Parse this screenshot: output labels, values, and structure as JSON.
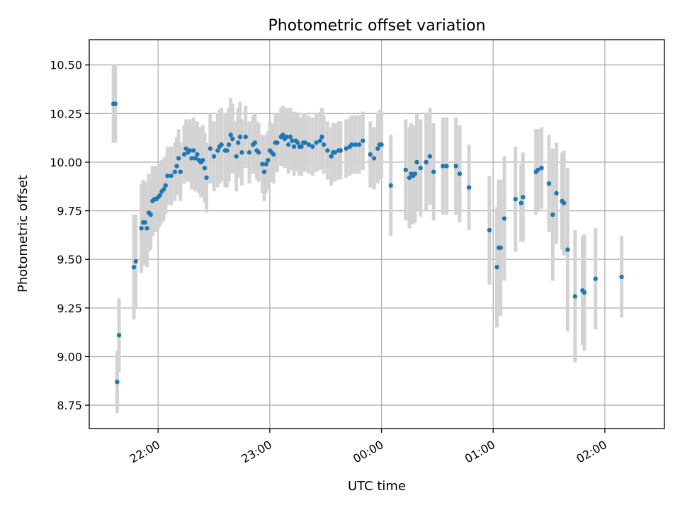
{
  "chart_data": {
    "type": "scatter",
    "title": "Photometric offset variation",
    "xlabel": "UTC time",
    "ylabel": "Photometric offset",
    "x_unit": "UTC time (hours, after 21:00 rolls over past midnight)",
    "xlim": [
      "21:23",
      "02:32"
    ],
    "ylim": [
      8.63,
      10.63
    ],
    "x_ticks": [
      "22:00",
      "23:00",
      "00:00",
      "01:00",
      "02:00"
    ],
    "y_ticks": [
      "8.75",
      "9.00",
      "9.25",
      "9.50",
      "9.75",
      "10.00",
      "10.25",
      "10.50"
    ],
    "grid": true,
    "colors": {
      "points": "#1f77b4",
      "errorbars": "#d3d3d3"
    },
    "points": [
      [
        "21:36",
        10.3,
        0.2
      ],
      [
        "21:37",
        10.3,
        0.2
      ],
      [
        "21:38",
        8.87,
        0.16
      ],
      [
        "21:39",
        9.11,
        0.19
      ],
      [
        "21:47",
        9.46,
        0.27
      ],
      [
        "21:48",
        9.49,
        0.24
      ],
      [
        "21:51",
        9.66,
        0.23
      ],
      [
        "21:52",
        9.69,
        0.22
      ],
      [
        "21:53",
        9.69,
        0.21
      ],
      [
        "21:54",
        9.66,
        0.2
      ],
      [
        "21:55",
        9.74,
        0.2
      ],
      [
        "21:56",
        9.73,
        0.18
      ],
      [
        "21:57",
        9.8,
        0.18
      ],
      [
        "21:58",
        9.81,
        0.17
      ],
      [
        "21:59",
        9.81,
        0.17
      ],
      [
        "22:00",
        9.82,
        0.16
      ],
      [
        "22:01",
        9.83,
        0.16
      ],
      [
        "22:02",
        9.85,
        0.16
      ],
      [
        "22:03",
        9.86,
        0.16
      ],
      [
        "22:04",
        9.88,
        0.15
      ],
      [
        "22:05",
        9.93,
        0.15
      ],
      [
        "22:07",
        9.93,
        0.15
      ],
      [
        "22:09",
        9.95,
        0.15
      ],
      [
        "22:10",
        9.98,
        0.15
      ],
      [
        "22:11",
        10.02,
        0.15
      ],
      [
        "22:12",
        9.95,
        0.15
      ],
      [
        "22:14",
        10.04,
        0.15
      ],
      [
        "22:15",
        10.07,
        0.15
      ],
      [
        "22:16",
        10.05,
        0.15
      ],
      [
        "22:17",
        10.06,
        0.16
      ],
      [
        "22:18",
        10.02,
        0.16
      ],
      [
        "22:19",
        10.06,
        0.17
      ],
      [
        "22:20",
        10.02,
        0.17
      ],
      [
        "22:21",
        10.04,
        0.17
      ],
      [
        "22:22",
        10.01,
        0.17
      ],
      [
        "22:23",
        10.0,
        0.18
      ],
      [
        "22:24",
        10.01,
        0.18
      ],
      [
        "22:25",
        9.97,
        0.18
      ],
      [
        "22:26",
        9.92,
        0.18
      ],
      [
        "22:28",
        10.07,
        0.18
      ],
      [
        "22:30",
        10.03,
        0.18
      ],
      [
        "22:32",
        10.06,
        0.19
      ],
      [
        "22:33",
        10.08,
        0.19
      ],
      [
        "22:34",
        10.09,
        0.19
      ],
      [
        "22:36",
        10.06,
        0.19
      ],
      [
        "22:37",
        10.06,
        0.19
      ],
      [
        "22:38",
        10.09,
        0.19
      ],
      [
        "22:39",
        10.14,
        0.19
      ],
      [
        "22:40",
        10.12,
        0.18
      ],
      [
        "22:42",
        10.03,
        0.18
      ],
      [
        "22:43",
        10.1,
        0.18
      ],
      [
        "22:44",
        10.13,
        0.18
      ],
      [
        "22:45",
        10.05,
        0.17
      ],
      [
        "22:47",
        10.13,
        0.16
      ],
      [
        "22:49",
        10.05,
        0.16
      ],
      [
        "22:51",
        10.09,
        0.15
      ],
      [
        "22:52",
        10.1,
        0.15
      ],
      [
        "22:53",
        10.06,
        0.15
      ],
      [
        "22:54",
        10.05,
        0.15
      ],
      [
        "22:56",
        9.99,
        0.15
      ],
      [
        "22:57",
        9.95,
        0.15
      ],
      [
        "22:58",
        9.99,
        0.15
      ],
      [
        "22:59",
        10.01,
        0.15
      ],
      [
        "23:00",
        10.06,
        0.15
      ],
      [
        "23:01",
        10.05,
        0.15
      ],
      [
        "23:02",
        10.04,
        0.15
      ],
      [
        "23:03",
        10.1,
        0.15
      ],
      [
        "23:04",
        10.1,
        0.15
      ],
      [
        "23:06",
        10.13,
        0.15
      ],
      [
        "23:07",
        10.14,
        0.15
      ],
      [
        "23:08",
        10.12,
        0.15
      ],
      [
        "23:09",
        10.13,
        0.15
      ],
      [
        "23:10",
        10.09,
        0.15
      ],
      [
        "23:11",
        10.13,
        0.15
      ],
      [
        "23:12",
        10.11,
        0.15
      ],
      [
        "23:13",
        10.08,
        0.15
      ],
      [
        "23:14",
        10.11,
        0.15
      ],
      [
        "23:15",
        10.1,
        0.15
      ],
      [
        "23:16",
        10.08,
        0.15
      ],
      [
        "23:17",
        10.08,
        0.15
      ],
      [
        "23:18",
        10.1,
        0.15
      ],
      [
        "23:19",
        10.1,
        0.15
      ],
      [
        "23:21",
        10.09,
        0.15
      ],
      [
        "23:23",
        10.08,
        0.15
      ],
      [
        "23:25",
        10.1,
        0.15
      ],
      [
        "23:27",
        10.11,
        0.15
      ],
      [
        "23:28",
        10.13,
        0.15
      ],
      [
        "23:29",
        10.09,
        0.15
      ],
      [
        "23:31",
        10.06,
        0.15
      ],
      [
        "23:33",
        10.03,
        0.15
      ],
      [
        "23:34",
        10.05,
        0.15
      ],
      [
        "23:35",
        10.05,
        0.15
      ],
      [
        "23:37",
        10.06,
        0.15
      ],
      [
        "23:38",
        10.06,
        0.15
      ],
      [
        "23:41",
        10.07,
        0.15
      ],
      [
        "23:43",
        10.08,
        0.15
      ],
      [
        "23:44",
        10.09,
        0.15
      ],
      [
        "23:46",
        10.09,
        0.15
      ],
      [
        "23:48",
        10.09,
        0.15
      ],
      [
        "23:50",
        10.11,
        0.15
      ],
      [
        "23:54",
        10.04,
        0.17
      ],
      [
        "23:56",
        10.02,
        0.16
      ],
      [
        "23:58",
        10.07,
        0.18
      ],
      [
        "23:59",
        10.09,
        0.18
      ],
      [
        "00:00",
        10.09,
        0.17
      ],
      [
        "00:05",
        9.88,
        0.26
      ],
      [
        "00:13",
        9.96,
        0.26
      ],
      [
        "00:15",
        9.92,
        0.26
      ],
      [
        "00:16",
        9.94,
        0.26
      ],
      [
        "00:17",
        9.93,
        0.25
      ],
      [
        "00:18",
        9.94,
        0.25
      ],
      [
        "00:19",
        10.0,
        0.25
      ],
      [
        "00:21",
        9.97,
        0.25
      ],
      [
        "00:24",
        10.0,
        0.25
      ],
      [
        "00:26",
        10.03,
        0.25
      ],
      [
        "00:28",
        9.95,
        0.25
      ],
      [
        "00:33",
        9.98,
        0.25
      ],
      [
        "00:35",
        9.98,
        0.25
      ],
      [
        "00:40",
        9.98,
        0.25
      ],
      [
        "00:42",
        9.94,
        0.25
      ],
      [
        "00:47",
        9.87,
        0.22
      ],
      [
        "00:58",
        9.65,
        0.28
      ],
      [
        "01:02",
        9.46,
        0.31
      ],
      [
        "01:03",
        9.56,
        0.35
      ],
      [
        "01:04",
        9.56,
        0.35
      ],
      [
        "01:06",
        9.71,
        0.32
      ],
      [
        "01:12",
        9.81,
        0.27
      ],
      [
        "01:15",
        9.79,
        0.2
      ],
      [
        "01:16",
        9.82,
        0.23
      ],
      [
        "01:23",
        9.95,
        0.22
      ],
      [
        "01:24",
        9.96,
        0.21
      ],
      [
        "01:26",
        9.97,
        0.21
      ],
      [
        "01:30",
        9.89,
        0.25
      ],
      [
        "01:32",
        9.73,
        0.34
      ],
      [
        "01:34",
        9.84,
        0.26
      ],
      [
        "01:37",
        9.8,
        0.25
      ],
      [
        "01:38",
        9.79,
        0.27
      ],
      [
        "01:40",
        9.55,
        0.42
      ],
      [
        "01:44",
        9.31,
        0.34
      ],
      [
        "01:48",
        9.34,
        0.28
      ],
      [
        "01:49",
        9.33,
        0.3
      ],
      [
        "01:55",
        9.4,
        0.26
      ],
      [
        "02:09",
        9.41,
        0.21
      ]
    ]
  }
}
